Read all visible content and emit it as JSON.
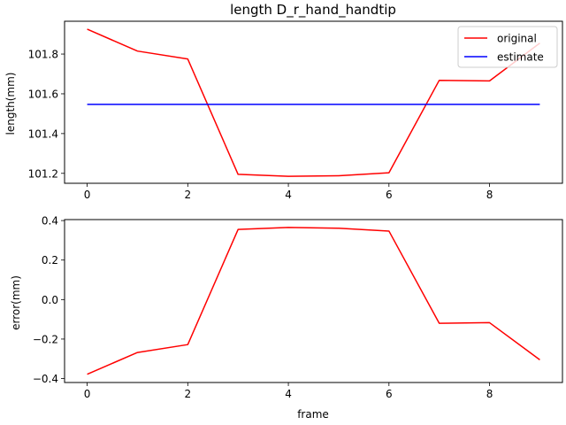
{
  "chart_data": [
    {
      "type": "line",
      "title": "length D_r_hand_handtip",
      "xlabel": "",
      "ylabel": "length(mm)",
      "x": [
        0,
        1,
        2,
        3,
        4,
        5,
        6,
        7,
        8,
        9
      ],
      "xlim": [
        -0.45,
        9.45
      ],
      "ylim": [
        101.15,
        101.965
      ],
      "xticks": [
        0,
        2,
        4,
        6,
        8
      ],
      "xtick_labels": [
        "0",
        "2",
        "4",
        "6",
        "8"
      ],
      "yticks": [
        101.2,
        101.4,
        101.6,
        101.8
      ],
      "ytick_labels": [
        "101.2",
        "101.4",
        "101.6",
        "101.8"
      ],
      "grid": false,
      "legend_position": "top-right",
      "series": [
        {
          "name": "original",
          "color": "#ff0000",
          "values": [
            101.925,
            101.815,
            101.775,
            101.195,
            101.185,
            101.188,
            101.203,
            101.668,
            101.665,
            101.855
          ]
        },
        {
          "name": "estimate",
          "color": "#0000ff",
          "values": [
            101.547,
            101.547,
            101.547,
            101.547,
            101.547,
            101.547,
            101.547,
            101.547,
            101.547,
            101.547
          ]
        }
      ]
    },
    {
      "type": "line",
      "title": "",
      "xlabel": "frame",
      "ylabel": "error(mm)",
      "x": [
        0,
        1,
        2,
        3,
        4,
        5,
        6,
        7,
        8,
        9
      ],
      "xlim": [
        -0.45,
        9.45
      ],
      "ylim": [
        -0.42,
        0.405
      ],
      "xticks": [
        0,
        2,
        4,
        6,
        8
      ],
      "xtick_labels": [
        "0",
        "2",
        "4",
        "6",
        "8"
      ],
      "yticks": [
        -0.4,
        -0.2,
        0.0,
        0.2,
        0.4
      ],
      "ytick_labels": [
        "−0.4",
        "−0.2",
        "0.0",
        "0.2",
        "0.4"
      ],
      "grid": false,
      "series": [
        {
          "color": "#ff0000",
          "values": [
            -0.378,
            -0.268,
            -0.228,
            0.355,
            0.365,
            0.361,
            0.347,
            -0.12,
            -0.117,
            -0.305
          ]
        }
      ]
    }
  ]
}
